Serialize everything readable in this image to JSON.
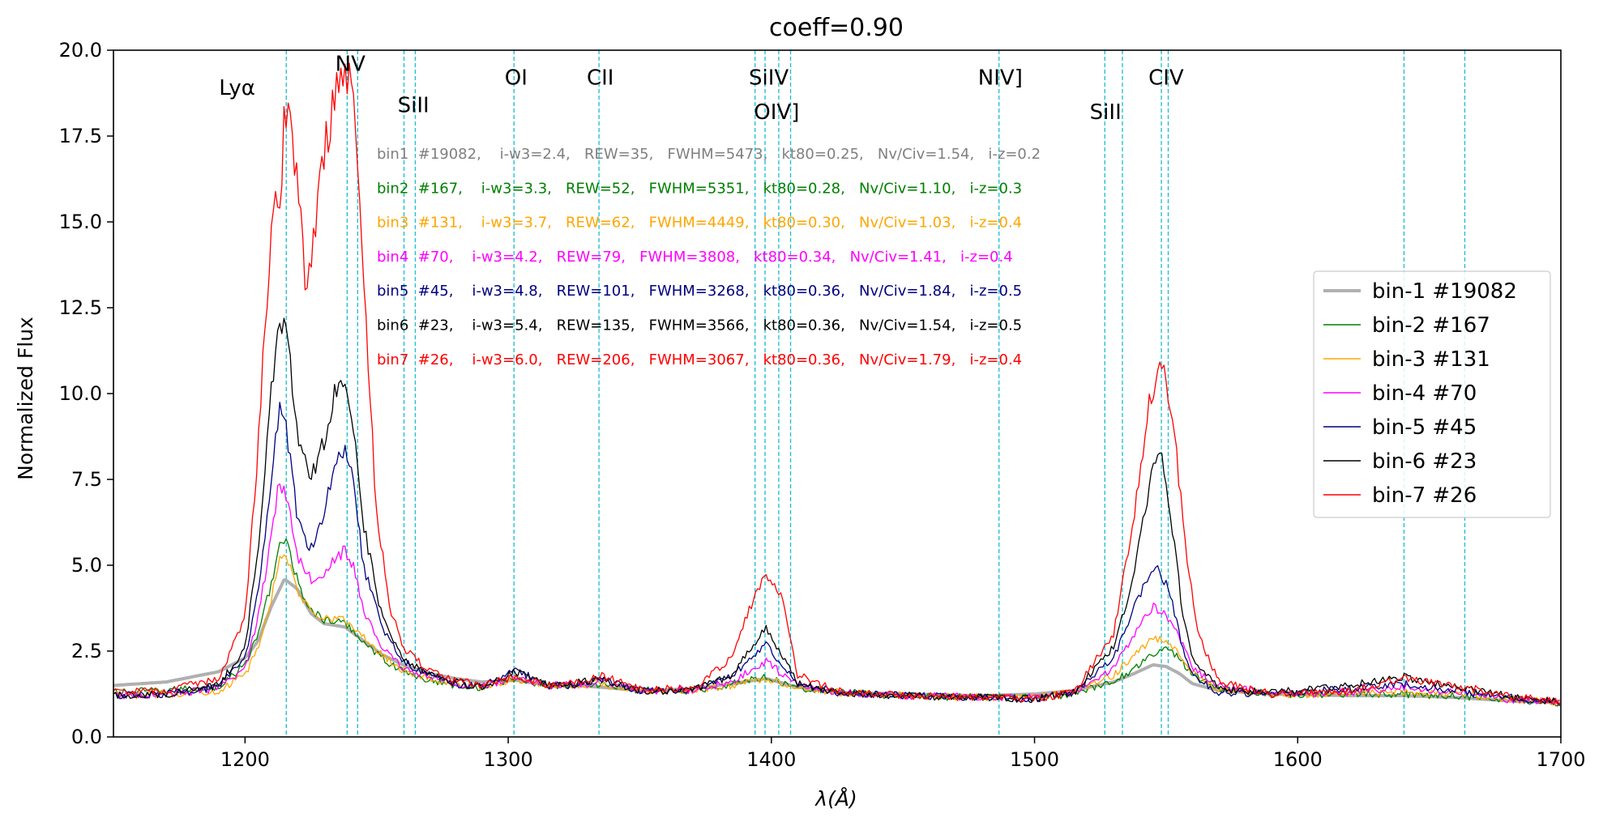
{
  "chart_data": {
    "type": "line",
    "title": "coeff=0.90",
    "xlabel": "λ(Å)",
    "ylabel": "Normalized Flux",
    "xlim": [
      1150,
      1700
    ],
    "ylim": [
      0,
      20
    ],
    "xticks": [
      1200,
      1300,
      1400,
      1500,
      1600,
      1700
    ],
    "xtick_labels": [
      "1200",
      "1300",
      "1400",
      "1500",
      "1600",
      "1700"
    ],
    "yticks": [
      0,
      2.5,
      5,
      7.5,
      10,
      12.5,
      15,
      17.5,
      20
    ],
    "ytick_labels": [
      "0.0",
      "2.5",
      "5.0",
      "7.5",
      "10.0",
      "12.5",
      "15.0",
      "17.5",
      "20.0"
    ],
    "grid": false,
    "legend_position": "right",
    "reference_lines": {
      "color": "#17becf",
      "x": [
        1215.67,
        1238.8,
        1242.8,
        1260.4,
        1264.7,
        1302.2,
        1334.5,
        1393.8,
        1402.8,
        1397.6,
        1407.3,
        1486.5,
        1526.7,
        1533.4,
        1548.2,
        1550.8,
        1640.4,
        1663.5
      ]
    },
    "line_labels": [
      {
        "text": "Lyα",
        "x": 1197,
        "y": 18.7
      },
      {
        "text": "NV",
        "x": 1240,
        "y": 19.4
      },
      {
        "text": "SiII",
        "x": 1264,
        "y": 18.2
      },
      {
        "text": "OI",
        "x": 1303,
        "y": 19.0
      },
      {
        "text": "CII",
        "x": 1335,
        "y": 19.0
      },
      {
        "text": "SiIV",
        "x": 1399,
        "y": 19.0
      },
      {
        "text": "OIV]",
        "x": 1402,
        "y": 18.0
      },
      {
        "text": "NIV]",
        "x": 1487,
        "y": 19.0
      },
      {
        "text": "SiII",
        "x": 1527,
        "y": 18.0
      },
      {
        "text": "CIV",
        "x": 1550,
        "y": 19.0
      }
    ],
    "stats": [
      {
        "text": "bin1  #19082,    i-w3=2.4,   REW=35,   FWHM=5473,   kt80=0.25,   Nv/Civ=1.54,   i-z=0.2",
        "color": "#808080"
      },
      {
        "text": "bin2  #167,    i-w3=3.3,   REW=52,   FWHM=5351,   kt80=0.28,   Nv/Civ=1.10,   i-z=0.3",
        "color": "#008000"
      },
      {
        "text": "bin3  #131,    i-w3=3.7,   REW=62,   FWHM=4449,   kt80=0.30,   Nv/Civ=1.03,   i-z=0.4",
        "color": "#FFA500"
      },
      {
        "text": "bin4  #70,    i-w3=4.2,   REW=79,   FWHM=3808,   kt80=0.34,   Nv/Civ=1.41,   i-z=0.4",
        "color": "#FF00FF"
      },
      {
        "text": "bin5  #45,    i-w3=4.8,   REW=101,   FWHM=3268,   kt80=0.36,   Nv/Civ=1.84,   i-z=0.5",
        "color": "#000080"
      },
      {
        "text": "bin6  #23,    i-w3=5.4,   REW=135,   FWHM=3566,   kt80=0.36,   Nv/Civ=1.54,   i-z=0.5",
        "color": "#000000"
      },
      {
        "text": "bin7  #26,    i-w3=6.0,   REW=206,   FWHM=3067,   kt80=0.36,   Nv/Civ=1.79,   i-z=0.4",
        "color": "#FF0000"
      }
    ],
    "series": [
      {
        "name": "bin-1 #19082",
        "color": "#b0b0b0",
        "width": 4,
        "x": [
          1150,
          1170,
          1190,
          1200,
          1205,
          1210,
          1215,
          1220,
          1225,
          1230,
          1238,
          1245,
          1252,
          1260,
          1270,
          1280,
          1290,
          1303,
          1315,
          1325,
          1335,
          1350,
          1370,
          1385,
          1398,
          1410,
          1425,
          1450,
          1480,
          1500,
          1515,
          1530,
          1538,
          1545,
          1550,
          1555,
          1560,
          1570,
          1590,
          1620,
          1640,
          1660,
          1680,
          1700
        ],
        "y": [
          1.5,
          1.6,
          1.9,
          2.3,
          2.8,
          3.8,
          4.6,
          4.3,
          3.6,
          3.3,
          3.2,
          2.8,
          2.4,
          2.1,
          1.85,
          1.7,
          1.6,
          1.65,
          1.5,
          1.5,
          1.45,
          1.35,
          1.4,
          1.55,
          1.7,
          1.45,
          1.3,
          1.25,
          1.2,
          1.25,
          1.35,
          1.6,
          1.85,
          2.1,
          2.05,
          1.85,
          1.55,
          1.35,
          1.25,
          1.2,
          1.2,
          1.15,
          1.05,
          1.0
        ]
      },
      {
        "name": "bin-2 #167",
        "color": "#008000",
        "width": 1.3,
        "x": [
          1150,
          1170,
          1190,
          1200,
          1205,
          1210,
          1213,
          1216,
          1220,
          1225,
          1230,
          1238,
          1245,
          1252,
          1260,
          1270,
          1280,
          1290,
          1303,
          1315,
          1325,
          1335,
          1350,
          1370,
          1385,
          1398,
          1410,
          1425,
          1450,
          1480,
          1500,
          1515,
          1530,
          1538,
          1545,
          1550,
          1555,
          1560,
          1570,
          1590,
          1620,
          1640,
          1660,
          1680,
          1700
        ],
        "y": [
          1.3,
          1.35,
          1.45,
          2.1,
          3.0,
          4.5,
          5.6,
          5.6,
          4.5,
          3.7,
          3.4,
          3.3,
          2.8,
          2.3,
          1.9,
          1.65,
          1.5,
          1.45,
          1.7,
          1.5,
          1.5,
          1.55,
          1.35,
          1.35,
          1.55,
          1.75,
          1.45,
          1.3,
          1.2,
          1.15,
          1.15,
          1.25,
          1.6,
          2.0,
          2.45,
          2.55,
          2.3,
          1.8,
          1.4,
          1.25,
          1.25,
          1.25,
          1.2,
          1.1,
          1.0
        ]
      },
      {
        "name": "bin-3 #131",
        "color": "#FFA500",
        "width": 1.3,
        "x": [
          1150,
          1170,
          1190,
          1200,
          1205,
          1210,
          1213,
          1216,
          1220,
          1225,
          1230,
          1238,
          1245,
          1252,
          1260,
          1270,
          1280,
          1290,
          1303,
          1315,
          1325,
          1335,
          1350,
          1370,
          1385,
          1398,
          1410,
          1425,
          1450,
          1480,
          1500,
          1515,
          1530,
          1538,
          1545,
          1550,
          1555,
          1560,
          1570,
          1590,
          1620,
          1640,
          1660,
          1680,
          1700
        ],
        "y": [
          1.2,
          1.25,
          1.35,
          1.8,
          2.6,
          4.0,
          5.3,
          5.2,
          4.2,
          3.7,
          3.5,
          3.4,
          2.9,
          2.4,
          1.95,
          1.7,
          1.55,
          1.45,
          1.7,
          1.5,
          1.5,
          1.55,
          1.35,
          1.35,
          1.5,
          1.7,
          1.45,
          1.3,
          1.2,
          1.15,
          1.15,
          1.3,
          1.8,
          2.4,
          2.85,
          2.8,
          2.4,
          1.85,
          1.4,
          1.25,
          1.25,
          1.3,
          1.25,
          1.1,
          1.0
        ]
      },
      {
        "name": "bin-4 #70",
        "color": "#FF00FF",
        "width": 1.3,
        "x": [
          1150,
          1170,
          1190,
          1200,
          1205,
          1210,
          1213,
          1216,
          1220,
          1225,
          1230,
          1235,
          1238,
          1241,
          1245,
          1252,
          1260,
          1270,
          1280,
          1290,
          1303,
          1315,
          1325,
          1335,
          1350,
          1370,
          1385,
          1398,
          1410,
          1425,
          1450,
          1480,
          1500,
          1515,
          1530,
          1538,
          1545,
          1550,
          1555,
          1560,
          1570,
          1590,
          1620,
          1640,
          1660,
          1680,
          1700
        ],
        "y": [
          1.2,
          1.25,
          1.4,
          2.0,
          3.5,
          5.8,
          7.6,
          6.9,
          5.3,
          4.6,
          4.8,
          5.3,
          5.4,
          5.0,
          3.7,
          2.6,
          2.0,
          1.75,
          1.55,
          1.45,
          1.75,
          1.5,
          1.5,
          1.6,
          1.35,
          1.35,
          1.6,
          2.2,
          1.5,
          1.3,
          1.2,
          1.15,
          1.15,
          1.3,
          2.0,
          3.0,
          3.8,
          3.6,
          2.9,
          2.0,
          1.5,
          1.25,
          1.3,
          1.45,
          1.3,
          1.1,
          1.0
        ]
      },
      {
        "name": "bin-5 #45",
        "color": "#000080",
        "width": 1.3,
        "x": [
          1150,
          1170,
          1190,
          1200,
          1205,
          1210,
          1213,
          1216,
          1220,
          1225,
          1230,
          1235,
          1238,
          1241,
          1245,
          1252,
          1260,
          1270,
          1280,
          1290,
          1303,
          1315,
          1325,
          1335,
          1350,
          1370,
          1385,
          1398,
          1410,
          1425,
          1450,
          1480,
          1500,
          1515,
          1530,
          1538,
          1545,
          1548,
          1552,
          1556,
          1560,
          1570,
          1590,
          1620,
          1640,
          1660,
          1680,
          1700
        ],
        "y": [
          1.2,
          1.25,
          1.45,
          2.3,
          4.2,
          7.5,
          9.5,
          8.8,
          6.3,
          5.5,
          6.6,
          8.2,
          8.5,
          7.6,
          5.0,
          3.2,
          2.2,
          1.8,
          1.55,
          1.45,
          1.95,
          1.5,
          1.5,
          1.7,
          1.35,
          1.35,
          1.75,
          2.7,
          1.55,
          1.3,
          1.2,
          1.15,
          1.1,
          1.3,
          2.3,
          3.8,
          4.9,
          4.8,
          4.0,
          2.7,
          1.8,
          1.3,
          1.25,
          1.4,
          1.55,
          1.35,
          1.15,
          1.0
        ]
      },
      {
        "name": "bin-6 #23",
        "color": "#000000",
        "width": 1.3,
        "x": [
          1150,
          1170,
          1190,
          1200,
          1205,
          1210,
          1213,
          1216,
          1220,
          1225,
          1230,
          1235,
          1238,
          1241,
          1245,
          1252,
          1260,
          1270,
          1280,
          1290,
          1303,
          1315,
          1325,
          1335,
          1350,
          1370,
          1385,
          1398,
          1410,
          1425,
          1450,
          1480,
          1500,
          1515,
          1530,
          1538,
          1545,
          1548,
          1552,
          1556,
          1560,
          1570,
          1590,
          1620,
          1640,
          1660,
          1680,
          1700
        ],
        "y": [
          1.2,
          1.25,
          1.5,
          2.6,
          5.5,
          10.0,
          11.9,
          11.8,
          8.6,
          7.5,
          8.6,
          10.3,
          10.6,
          9.3,
          6.2,
          3.5,
          2.3,
          1.85,
          1.6,
          1.45,
          1.9,
          1.5,
          1.55,
          1.7,
          1.35,
          1.35,
          1.8,
          3.2,
          1.55,
          1.3,
          1.2,
          1.15,
          1.1,
          1.3,
          2.6,
          4.8,
          7.8,
          8.2,
          6.3,
          3.8,
          2.2,
          1.4,
          1.3,
          1.5,
          1.75,
          1.45,
          1.2,
          1.0
        ]
      },
      {
        "name": "bin-7 #26",
        "color": "#FF0000",
        "width": 1.3,
        "x": [
          1150,
          1170,
          1190,
          1200,
          1205,
          1208,
          1211,
          1213,
          1215,
          1217,
          1220,
          1223,
          1226,
          1230,
          1234,
          1237,
          1239,
          1241,
          1243,
          1246,
          1250,
          1255,
          1260,
          1270,
          1280,
          1290,
          1303,
          1315,
          1325,
          1335,
          1350,
          1370,
          1385,
          1392,
          1398,
          1404,
          1410,
          1425,
          1450,
          1480,
          1500,
          1515,
          1530,
          1538,
          1543,
          1547,
          1550,
          1553,
          1557,
          1562,
          1570,
          1590,
          1620,
          1640,
          1660,
          1680,
          1700
        ],
        "y": [
          1.3,
          1.35,
          1.7,
          3.5,
          8.5,
          12.5,
          16.0,
          15.2,
          18.0,
          17.8,
          16.4,
          13.0,
          14.5,
          17.0,
          18.5,
          19.5,
          19.2,
          18.8,
          16.0,
          12.0,
          6.5,
          3.8,
          2.6,
          1.9,
          1.65,
          1.5,
          1.75,
          1.5,
          1.55,
          1.8,
          1.4,
          1.4,
          2.3,
          3.8,
          4.7,
          4.2,
          1.8,
          1.35,
          1.2,
          1.15,
          1.1,
          1.3,
          3.0,
          6.5,
          9.5,
          10.6,
          10.4,
          9.0,
          5.8,
          3.0,
          1.6,
          1.25,
          1.35,
          1.7,
          1.5,
          1.2,
          1.0
        ]
      }
    ]
  }
}
